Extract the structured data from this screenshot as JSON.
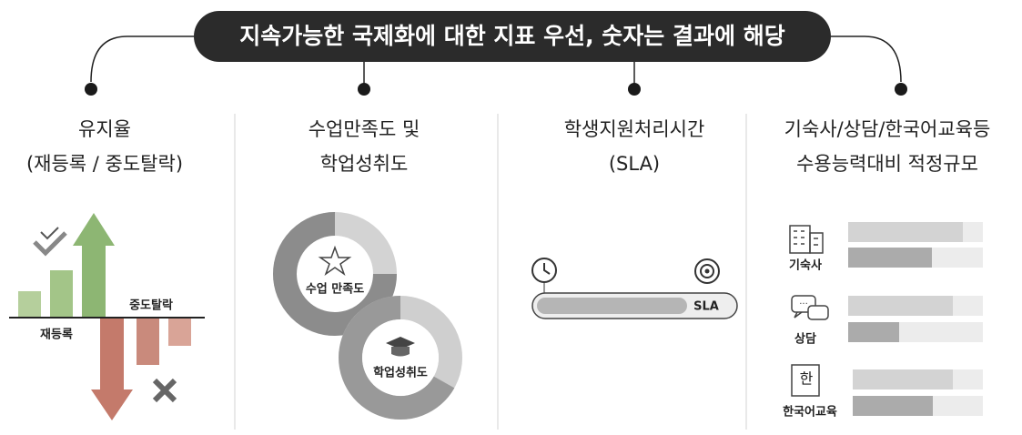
{
  "header": {
    "title": "지속가능한 국제화에 대한 지표 우선, 숫자는 결과에 해당"
  },
  "columns": [
    {
      "title_lines": [
        "유지율",
        "(재등록 / 중도탈락)"
      ],
      "labels": [
        "중도탈락",
        "재등록"
      ]
    },
    {
      "title_lines": [
        "수업만족도 및",
        "학업성취도"
      ],
      "labels": [
        "수업 만족도",
        "학업성취도"
      ]
    },
    {
      "title_lines": [
        "학생지원처리시간",
        "(SLA)"
      ],
      "labels": [
        "SLA"
      ]
    },
    {
      "title_lines": [
        "기숙사/상담/한국어교육등",
        "수용능력대비 적정규모"
      ],
      "labels": [
        "기숙사",
        "상담",
        "한",
        "한국어교육"
      ]
    }
  ]
}
